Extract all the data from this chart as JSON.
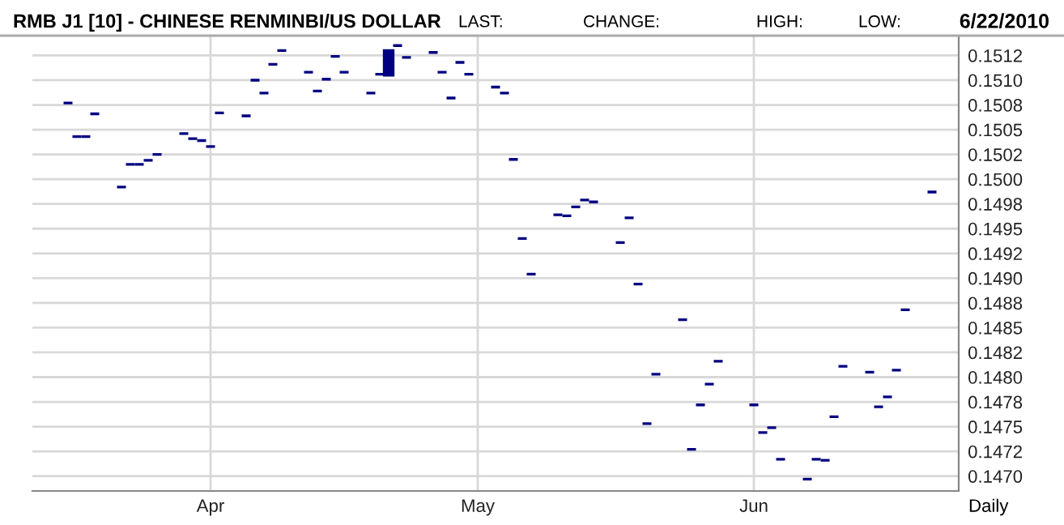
{
  "chart_data": {
    "type": "candlestick",
    "title": "RMB J1 [10] - CHINESE RENMINBI/US DOLLAR",
    "annotations": [
      "LAST:",
      "CHANGE:",
      "HIGH:",
      "LOW:",
      "6/22/2010",
      "Daily"
    ],
    "x": [
      "2010-03-16",
      "2010-03-17",
      "2010-03-18",
      "2010-03-19",
      "2010-03-22",
      "2010-03-23",
      "2010-03-24",
      "2010-03-25",
      "2010-03-26",
      "2010-03-29",
      "2010-03-30",
      "2010-03-31",
      "2010-04-01",
      "2010-04-02",
      "2010-04-05",
      "2010-04-06",
      "2010-04-07",
      "2010-04-08",
      "2010-04-09",
      "2010-04-12",
      "2010-04-13",
      "2010-04-14",
      "2010-04-15",
      "2010-04-16",
      "2010-04-19",
      "2010-04-20",
      "2010-04-21",
      "2010-04-22",
      "2010-04-23",
      "2010-04-26",
      "2010-04-27",
      "2010-04-28",
      "2010-04-29",
      "2010-04-30",
      "2010-05-03",
      "2010-05-04",
      "2010-05-05",
      "2010-05-06",
      "2010-05-07",
      "2010-05-10",
      "2010-05-11",
      "2010-05-12",
      "2010-05-13",
      "2010-05-14",
      "2010-05-17",
      "2010-05-18",
      "2010-05-19",
      "2010-05-20",
      "2010-05-21",
      "2010-05-24",
      "2010-05-25",
      "2010-05-26",
      "2010-05-27",
      "2010-05-28",
      "2010-06-01",
      "2010-06-02",
      "2010-06-03",
      "2010-06-04",
      "2010-06-07",
      "2010-06-08",
      "2010-06-09",
      "2010-06-10",
      "2010-06-11",
      "2010-06-14",
      "2010-06-15",
      "2010-06-16",
      "2010-06-17",
      "2010-06-18",
      "2010-06-21"
    ],
    "ohlc": [
      [
        0.15077,
        0.15077,
        0.15077,
        0.15077
      ],
      [
        0.15043,
        0.15043,
        0.15043,
        0.15043
      ],
      [
        0.15043,
        0.15043,
        0.15043,
        0.15043
      ],
      [
        0.15066,
        0.15066,
        0.15066,
        0.15066
      ],
      [
        0.14992,
        0.14992,
        0.14992,
        0.14992
      ],
      [
        0.15015,
        0.15015,
        0.15015,
        0.15015
      ],
      [
        0.15015,
        0.15015,
        0.15015,
        0.15015
      ],
      [
        0.15019,
        0.15019,
        0.15019,
        0.15019
      ],
      [
        0.15025,
        0.15025,
        0.15025,
        0.15025
      ],
      [
        0.15046,
        0.15046,
        0.15046,
        0.15046
      ],
      [
        0.15041,
        0.15041,
        0.15041,
        0.15041
      ],
      [
        0.15039,
        0.15039,
        0.15039,
        0.15039
      ],
      [
        0.15033,
        0.15033,
        0.15033,
        0.15033
      ],
      [
        0.15067,
        0.15067,
        0.15067,
        0.15067
      ],
      [
        0.15064,
        0.15064,
        0.15064,
        0.15064
      ],
      [
        0.151,
        0.151,
        0.151,
        0.151
      ],
      [
        0.15087,
        0.15087,
        0.15087,
        0.15087
      ],
      [
        0.15116,
        0.15116,
        0.15116,
        0.15116
      ],
      [
        0.1513,
        0.1513,
        0.1513,
        0.1513
      ],
      [
        0.15108,
        0.15108,
        0.15108,
        0.15108
      ],
      [
        0.15089,
        0.15089,
        0.15089,
        0.15089
      ],
      [
        0.15101,
        0.15101,
        0.15101,
        0.15101
      ],
      [
        0.15124,
        0.15124,
        0.15124,
        0.15124
      ],
      [
        0.15108,
        0.15108,
        0.15108,
        0.15108
      ],
      [
        0.15087,
        0.15087,
        0.15087,
        0.15087
      ],
      [
        0.15106,
        0.15106,
        0.15106,
        0.15106
      ],
      [
        0.1513,
        0.1513,
        0.15105,
        0.15105
      ],
      [
        0.15135,
        0.15135,
        0.15135,
        0.15135
      ],
      [
        0.15123,
        0.15123,
        0.15123,
        0.15123
      ],
      [
        0.15128,
        0.15128,
        0.15128,
        0.15128
      ],
      [
        0.15108,
        0.15108,
        0.15108,
        0.15108
      ],
      [
        0.15082,
        0.15082,
        0.15082,
        0.15082
      ],
      [
        0.15118,
        0.15118,
        0.15118,
        0.15118
      ],
      [
        0.15106,
        0.15106,
        0.15106,
        0.15106
      ],
      [
        0.15093,
        0.15093,
        0.15093,
        0.15093
      ],
      [
        0.15087,
        0.15087,
        0.15087,
        0.15087
      ],
      [
        0.1502,
        0.1502,
        0.1502,
        0.1502
      ],
      [
        0.1494,
        0.1494,
        0.1494,
        0.1494
      ],
      [
        0.14904,
        0.14904,
        0.14904,
        0.14904
      ],
      [
        0.14964,
        0.14964,
        0.14964,
        0.14964
      ],
      [
        0.14963,
        0.14963,
        0.14963,
        0.14963
      ],
      [
        0.14972,
        0.14972,
        0.14972,
        0.14972
      ],
      [
        0.14979,
        0.14979,
        0.14979,
        0.14979
      ],
      [
        0.14977,
        0.14977,
        0.14977,
        0.14977
      ],
      [
        0.14936,
        0.14936,
        0.14936,
        0.14936
      ],
      [
        0.14961,
        0.14961,
        0.14961,
        0.14961
      ],
      [
        0.14894,
        0.14894,
        0.14894,
        0.14894
      ],
      [
        0.14753,
        0.14753,
        0.14753,
        0.14753
      ],
      [
        0.14803,
        0.14803,
        0.14803,
        0.14803
      ],
      [
        0.14858,
        0.14858,
        0.14858,
        0.14858
      ],
      [
        0.14727,
        0.14727,
        0.14727,
        0.14727
      ],
      [
        0.14772,
        0.14772,
        0.14772,
        0.14772
      ],
      [
        0.14793,
        0.14793,
        0.14793,
        0.14793
      ],
      [
        0.14816,
        0.14816,
        0.14816,
        0.14816
      ],
      [
        0.14772,
        0.14772,
        0.14772,
        0.14772
      ],
      [
        0.14744,
        0.14744,
        0.14744,
        0.14744
      ],
      [
        0.14749,
        0.14749,
        0.14749,
        0.14749
      ],
      [
        0.14717,
        0.14717,
        0.14717,
        0.14717
      ],
      [
        0.14697,
        0.14697,
        0.14697,
        0.14697
      ],
      [
        0.14717,
        0.14717,
        0.14717,
        0.14717
      ],
      [
        0.14716,
        0.14716,
        0.14716,
        0.14716
      ],
      [
        0.1476,
        0.1476,
        0.1476,
        0.1476
      ],
      [
        0.14811,
        0.14811,
        0.14811,
        0.14811
      ],
      [
        0.14805,
        0.14805,
        0.14805,
        0.14805
      ],
      [
        0.1477,
        0.1477,
        0.1477,
        0.1477
      ],
      [
        0.1478,
        0.1478,
        0.1478,
        0.1478
      ],
      [
        0.14807,
        0.14807,
        0.14807,
        0.14807
      ],
      [
        0.14868,
        0.14868,
        0.14868,
        0.14868
      ],
      [
        0.14987,
        0.14987,
        0.14987,
        0.14987
      ]
    ],
    "color": "#000080",
    "xlim": [
      "2010-03-12",
      "2010-06-24"
    ],
    "xticks": [
      {
        "value": "2010-04-01",
        "label": "Apr"
      },
      {
        "value": "2010-05-01",
        "label": "May"
      },
      {
        "value": "2010-06-01",
        "label": "Jun"
      }
    ],
    "ylim": [
      0.14685,
      0.15145
    ],
    "yticks": [
      {
        "value": 0.147,
        "label": "0.1470"
      },
      {
        "value": 0.14725,
        "label": "0.1472"
      },
      {
        "value": 0.1475,
        "label": "0.1475"
      },
      {
        "value": 0.14775,
        "label": "0.1478"
      },
      {
        "value": 0.148,
        "label": "0.1480"
      },
      {
        "value": 0.14825,
        "label": "0.1482"
      },
      {
        "value": 0.1485,
        "label": "0.1485"
      },
      {
        "value": 0.14875,
        "label": "0.1488"
      },
      {
        "value": 0.149,
        "label": "0.1490"
      },
      {
        "value": 0.14925,
        "label": "0.1492"
      },
      {
        "value": 0.1495,
        "label": "0.1495"
      },
      {
        "value": 0.14975,
        "label": "0.1498"
      },
      {
        "value": 0.15,
        "label": "0.1500"
      },
      {
        "value": 0.15025,
        "label": "0.1502"
      },
      {
        "value": 0.1505,
        "label": "0.1505"
      },
      {
        "value": 0.15075,
        "label": "0.1508"
      },
      {
        "value": 0.151,
        "label": "0.1510"
      },
      {
        "value": 0.15125,
        "label": "0.1512"
      }
    ],
    "grid": true,
    "legend": false
  }
}
